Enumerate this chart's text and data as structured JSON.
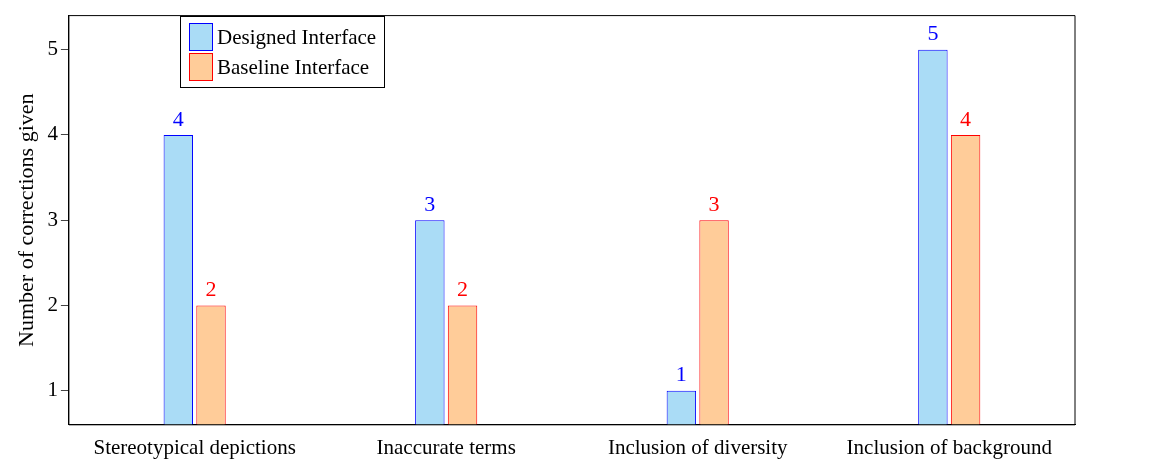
{
  "chart_data": {
    "type": "bar",
    "ylabel": "Number of corrections given",
    "categories": [
      "Stereotypical depictions",
      "Inaccurate terms",
      "Inclusion of diversity",
      "Inclusion of background"
    ],
    "series": [
      {
        "name": "Designed Interface",
        "color": "#aadcf6",
        "values": [
          4,
          3,
          1,
          5
        ]
      },
      {
        "name": "Baseline Interface",
        "color": "#ffcc99",
        "values": [
          2,
          2,
          3,
          4
        ]
      }
    ],
    "ylim": [
      0.6,
      5.4
    ],
    "yticks": [
      1,
      2,
      3,
      4,
      5
    ],
    "grid": false,
    "legend": "top left",
    "data_labels": true
  }
}
